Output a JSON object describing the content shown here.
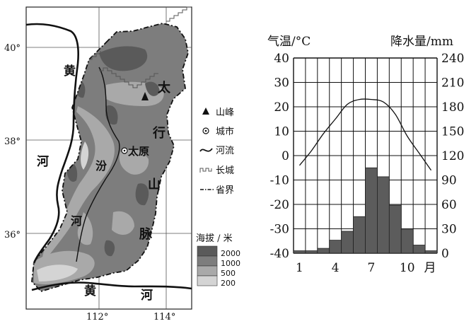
{
  "map": {
    "lat_labels": [
      "40°",
      "38°",
      "36°"
    ],
    "lon_labels": [
      "112°",
      "114°"
    ],
    "river_label_left": [
      "黄",
      "河"
    ],
    "river_label_bottom": [
      "黄",
      "河"
    ],
    "fen_river": [
      "汾",
      "河"
    ],
    "taihang": [
      "太",
      "行",
      "山",
      "脉"
    ],
    "city": "太原",
    "legend": {
      "items": [
        {
          "icon": "peak-icon",
          "label": "山峰"
        },
        {
          "icon": "city-icon",
          "label": "城市"
        },
        {
          "icon": "river-icon",
          "label": "河流"
        },
        {
          "icon": "great-wall-icon",
          "label": "长城"
        },
        {
          "icon": "province-border-icon",
          "label": "省界"
        }
      ],
      "elevation_title": "海拔 / 米",
      "elevation_levels": [
        {
          "value": "2000",
          "color": "#5a5a5a"
        },
        {
          "value": "1000",
          "color": "#7d7d7d"
        },
        {
          "value": "500",
          "color": "#a9a9a9"
        },
        {
          "value": "200",
          "color": "#d4d4d4"
        }
      ]
    }
  },
  "chart_data": {
    "type": "bar",
    "left_axis_title": "气温/°C",
    "right_axis_title": "降水量/mm",
    "left_ticks": [
      "40",
      "30",
      "20",
      "10",
      "0",
      "-10",
      "-20",
      "-30",
      "-40"
    ],
    "right_ticks": [
      "240",
      "210",
      "180",
      "150",
      "120",
      "90",
      "60",
      "30",
      "0"
    ],
    "x_tick_labels": [
      "1",
      "4",
      "7",
      "10",
      "月"
    ],
    "ylim_temperature": [
      -40,
      40
    ],
    "ylim_precipitation": [
      0,
      240
    ],
    "months": [
      1,
      2,
      3,
      4,
      5,
      6,
      7,
      8,
      9,
      10,
      11,
      12
    ],
    "temperature": [
      -4,
      2,
      9,
      15,
      21,
      23,
      23,
      22,
      17,
      8,
      1,
      -6
    ],
    "precipitation": [
      3,
      3,
      6,
      16,
      27,
      45,
      105,
      94,
      59,
      29,
      10,
      3
    ],
    "grid": true
  }
}
